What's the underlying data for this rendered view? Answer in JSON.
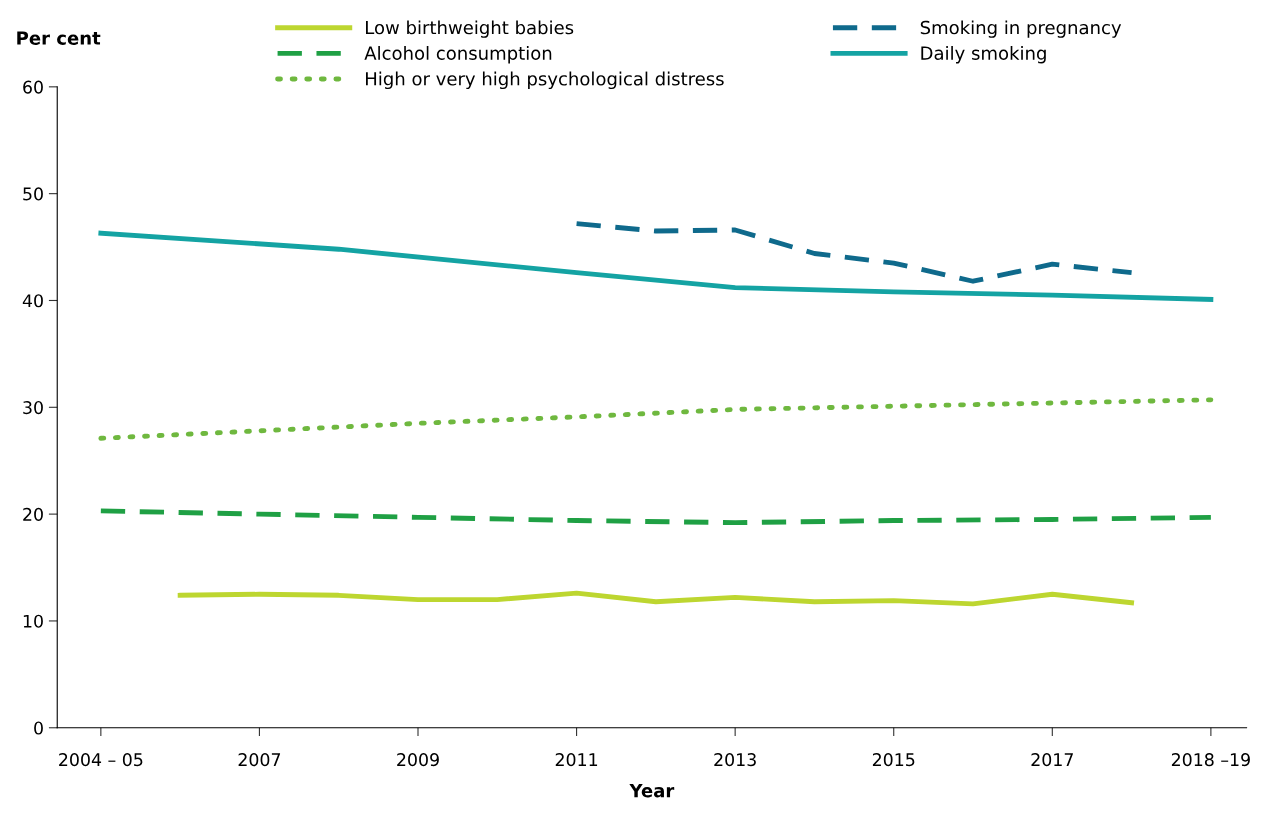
{
  "chart_data": {
    "type": "line",
    "xlabel": "Year",
    "ylabel": "Per cent",
    "xlim": [
      2004.45,
      2019.45
    ],
    "xticks": [
      {
        "value": 2005,
        "label": "2004 – 05"
      },
      2007,
      2009,
      2011,
      2013,
      2015,
      2017,
      {
        "value": 2019,
        "label": "2018 –19"
      }
    ],
    "ylim": [
      0,
      60
    ],
    "yticks": [
      0,
      10,
      20,
      30,
      40,
      50,
      60
    ],
    "grid": false,
    "legend": "top",
    "marker": "none",
    "series": [
      {
        "name": "Low birthweight babies",
        "color": "#bdd630",
        "line_style": "solid",
        "x": [
          2006,
          2007,
          2008,
          2009,
          2010,
          2011,
          2012,
          2013,
          2014,
          2015,
          2016,
          2017,
          2018
        ],
        "values": [
          12.4,
          12.5,
          12.4,
          12.0,
          12.0,
          12.6,
          11.8,
          12.2,
          11.8,
          11.9,
          11.6,
          12.5,
          11.7
        ]
      },
      {
        "name": "Alcohol consumption",
        "color": "#1fa044",
        "line_style": "dashed",
        "x": [
          2005,
          2007,
          2009,
          2011,
          2013,
          2015,
          2017,
          2019
        ],
        "values": [
          20.3,
          20.0,
          19.7,
          19.4,
          19.2,
          19.4,
          19.5,
          19.7
        ]
      },
      {
        "name": "High or very high psychological distress",
        "color": "#6fb83f",
        "line_style": "dotted",
        "x": [
          2005,
          2007,
          2009,
          2011,
          2013,
          2015,
          2017,
          2019
        ],
        "values": [
          27.1,
          27.8,
          28.5,
          29.1,
          29.8,
          30.1,
          30.4,
          30.7
        ]
      },
      {
        "name": "Smoking in pregnancy",
        "color": "#0f6a8c",
        "line_style": "dashed",
        "x": [
          2011,
          2012,
          2013,
          2014,
          2015,
          2016,
          2017,
          2018
        ],
        "values": [
          47.2,
          46.5,
          46.6,
          44.4,
          43.5,
          41.8,
          43.4,
          42.6
        ]
      },
      {
        "name": "Daily smoking",
        "color": "#14a3a3",
        "line_style": "solid",
        "x": [
          2005,
          2008,
          2011,
          2013,
          2015,
          2017,
          2019
        ],
        "values": [
          46.3,
          44.8,
          42.6,
          41.2,
          40.8,
          40.5,
          40.1
        ]
      }
    ]
  }
}
